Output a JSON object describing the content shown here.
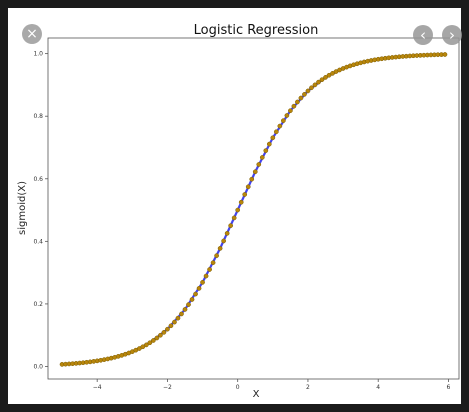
{
  "viewer": {
    "close_icon": "×",
    "prev_icon": "‹",
    "next_icon": "›"
  },
  "chart_data": {
    "type": "scatter",
    "title": "Logistic Regression",
    "xlabel": "X",
    "ylabel": "sigmoid(X)",
    "xlim": [
      -5.4,
      6.3
    ],
    "ylim": [
      -0.04,
      1.05
    ],
    "xticks": [
      -4,
      -2,
      0,
      2,
      4,
      6
    ],
    "xtick_labels": [
      "−4",
      "−2",
      "0",
      "2",
      "4",
      "6"
    ],
    "yticks": [
      0.0,
      0.2,
      0.4,
      0.6,
      0.8,
      1.0
    ],
    "ytick_labels": [
      "0.0",
      "0.2",
      "0.4",
      "0.6",
      "0.8",
      "1.0"
    ],
    "grid": false,
    "series": [
      {
        "kind": "line",
        "color": "#4444ee",
        "x": [
          -5.0,
          -4.5,
          -4.0,
          -3.5,
          -3.0,
          -2.5,
          -2.0,
          -1.5,
          -1.0,
          -0.5,
          0.0,
          0.5,
          1.0,
          1.5,
          2.0,
          2.5,
          3.0,
          3.5,
          4.0,
          4.5,
          5.0,
          5.5,
          5.9
        ],
        "y": [
          0.0067,
          0.011,
          0.018,
          0.0293,
          0.0474,
          0.0759,
          0.1192,
          0.1824,
          0.2689,
          0.3775,
          0.5,
          0.6225,
          0.7311,
          0.8176,
          0.8808,
          0.9241,
          0.9526,
          0.9707,
          0.982,
          0.989,
          0.9933,
          0.9959,
          0.9973
        ]
      },
      {
        "kind": "markers",
        "color": "#b8860b",
        "edge": "#7a5a00",
        "x": [
          -5.0,
          -4.9,
          -4.8,
          -4.7,
          -4.6,
          -4.5,
          -4.4,
          -4.3,
          -4.2,
          -4.1,
          -4.0,
          -3.9,
          -3.8,
          -3.7,
          -3.6,
          -3.5,
          -3.4,
          -3.3,
          -3.2,
          -3.1,
          -3.0,
          -2.9,
          -2.8,
          -2.7,
          -2.6,
          -2.5,
          -2.4,
          -2.3,
          -2.2,
          -2.1,
          -2.0,
          -1.9,
          -1.8,
          -1.7,
          -1.6,
          -1.5,
          -1.4,
          -1.3,
          -1.2,
          -1.1,
          -1.0,
          -0.9,
          -0.8,
          -0.7,
          -0.6,
          -0.5,
          -0.4,
          -0.3,
          -0.2,
          -0.1,
          0.0,
          0.1,
          0.2,
          0.3,
          0.4,
          0.5,
          0.6,
          0.7,
          0.8,
          0.9,
          1.0,
          1.1,
          1.2,
          1.3,
          1.4,
          1.5,
          1.6,
          1.7,
          1.8,
          1.9,
          2.0,
          2.1,
          2.2,
          2.3,
          2.4,
          2.5,
          2.6,
          2.7,
          2.8,
          2.9,
          3.0,
          3.1,
          3.2,
          3.3,
          3.4,
          3.5,
          3.6,
          3.7,
          3.8,
          3.9,
          4.0,
          4.1,
          4.2,
          4.3,
          4.4,
          4.5,
          4.6,
          4.7,
          4.8,
          4.9,
          5.0,
          5.1,
          5.2,
          5.3,
          5.4,
          5.5,
          5.6,
          5.7,
          5.8,
          5.9
        ],
        "y": [
          0.0067,
          0.0074,
          0.0082,
          0.009,
          0.01,
          0.011,
          0.0121,
          0.0134,
          0.0148,
          0.0163,
          0.018,
          0.0198,
          0.0219,
          0.0241,
          0.0266,
          0.0293,
          0.0323,
          0.0356,
          0.0392,
          0.0431,
          0.0474,
          0.0522,
          0.0573,
          0.063,
          0.0691,
          0.0759,
          0.0832,
          0.0911,
          0.0998,
          0.1091,
          0.1192,
          0.1301,
          0.1419,
          0.1545,
          0.168,
          0.1824,
          0.1978,
          0.2142,
          0.2315,
          0.2497,
          0.2689,
          0.2891,
          0.31,
          0.3318,
          0.3543,
          0.3775,
          0.4013,
          0.4256,
          0.4502,
          0.475,
          0.5,
          0.525,
          0.5498,
          0.5744,
          0.5987,
          0.6225,
          0.6457,
          0.6682,
          0.69,
          0.7109,
          0.7311,
          0.7503,
          0.7685,
          0.7858,
          0.8022,
          0.8176,
          0.832,
          0.8455,
          0.8581,
          0.8699,
          0.8808,
          0.8909,
          0.9002,
          0.9089,
          0.9168,
          0.9241,
          0.9309,
          0.937,
          0.9427,
          0.9478,
          0.9526,
          0.9569,
          0.9608,
          0.9644,
          0.9677,
          0.9707,
          0.9734,
          0.9759,
          0.9781,
          0.9802,
          0.982,
          0.9837,
          0.9852,
          0.9866,
          0.9879,
          0.989,
          0.99,
          0.991,
          0.9918,
          0.9926,
          0.9933,
          0.9939,
          0.9945,
          0.995,
          0.9955,
          0.9959,
          0.9963,
          0.9967,
          0.997,
          0.9973
        ]
      }
    ]
  }
}
